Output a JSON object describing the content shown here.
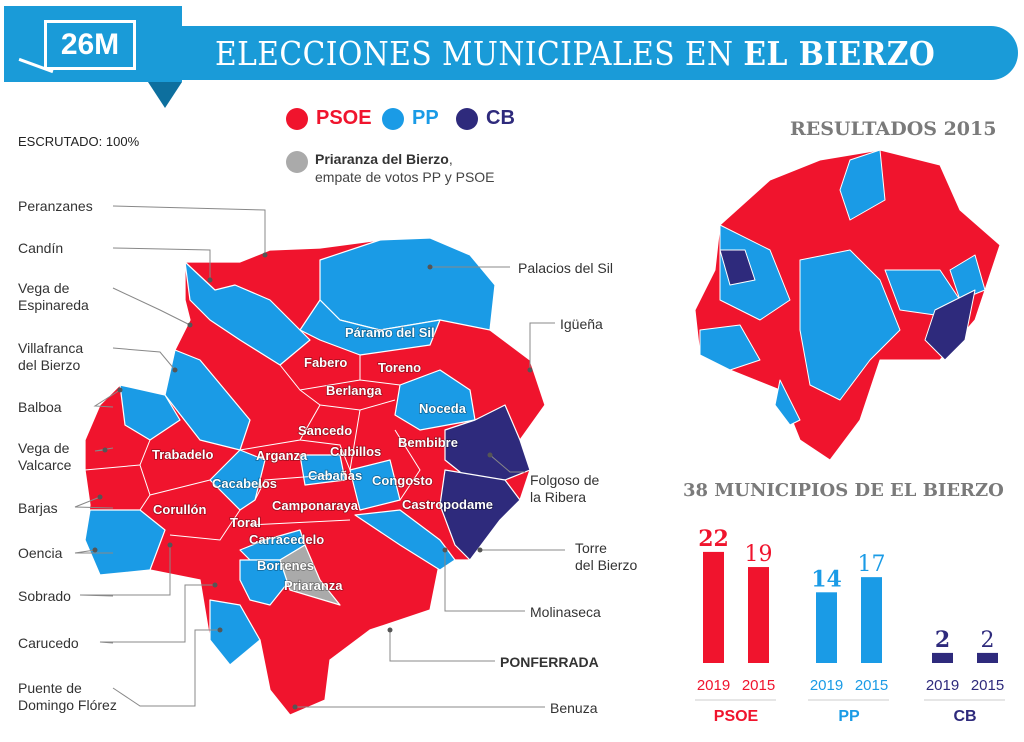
{
  "header": {
    "badge": "26M",
    "title_light": "ELECCIONES MUNICIPALES EN ",
    "title_bold": "EL BIERZO"
  },
  "colors": {
    "PSOE": "#f0142d",
    "PP": "#1a9be6",
    "CB": "#2e2a7c",
    "tie": "#aaaaaa",
    "banner": "#1a9bd8"
  },
  "legend": [
    {
      "party": "PSOE",
      "label": "PSOE"
    },
    {
      "party": "PP",
      "label": "PP"
    },
    {
      "party": "CB",
      "label": "CB"
    }
  ],
  "scrutiny": "ESCRUTADO: 100%",
  "tie_note": {
    "bold": "Priaranza del Bierzo",
    "rest": ",",
    "line2": "empate de votos PP y PSOE"
  },
  "map_labels": [
    "Páramo del Sil",
    "Fabero",
    "Toreno",
    "Berlanga",
    "Noceda",
    "Sancedo",
    "Cubillos",
    "Bembibre",
    "Trabadelo",
    "Arganza",
    "Cacabelos",
    "Cabañas",
    "Congosto",
    "Camponaraya",
    "Castropodame",
    "Corullón",
    "Toral",
    "Carracedelo",
    "Borrenes",
    "Priaranza"
  ],
  "callouts_left": [
    "Peranzanes",
    "Candín",
    "Vega de\nEspinareda",
    "Villafranca\ndel Bierzo",
    "Balboa",
    "Vega de\nValcarce",
    "Barjas",
    "Oencia",
    "Sobrado",
    "Carucedo",
    "Puente de\nDomingo Flórez"
  ],
  "callouts_right": [
    "Palacios del Sil",
    "Igüeña",
    "Folgoso de\nla Ribera",
    "Torre\ndel Bierzo",
    "Molinaseca",
    "PONFERRADA",
    "Benuza"
  ],
  "results_2015_title": "RESULTADOS 2015",
  "chart_data": {
    "type": "bar",
    "title": "38 MUNICIPIOS DE EL BIERZO",
    "categories": [
      "PSOE",
      "PP",
      "CB"
    ],
    "series": [
      {
        "name": "2019",
        "values": [
          22,
          14,
          2
        ]
      },
      {
        "name": "2015",
        "values": [
          19,
          17,
          2
        ]
      }
    ],
    "xlabel": "",
    "ylabel": "",
    "ylim": [
      0,
      22
    ]
  }
}
